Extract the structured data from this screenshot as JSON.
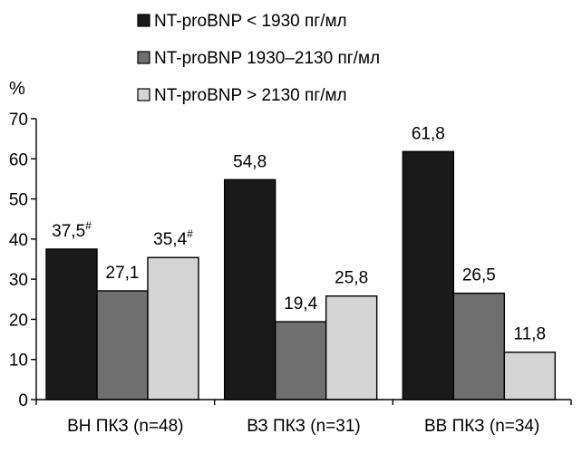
{
  "chart_data": {
    "type": "bar",
    "ylabel": "%",
    "xlabel": "",
    "ylim": [
      0,
      70
    ],
    "yticks": [
      0,
      10,
      20,
      30,
      40,
      50,
      60,
      70
    ],
    "grid": false,
    "legend_position": "top",
    "categories": [
      "ВН ПКЗ (n=48)",
      "ВЗ ПКЗ (n=31)",
      "ВВ ПКЗ (n=34)"
    ],
    "series": [
      {
        "name": "NT-proBNP < 1930 пг/мл",
        "color": "#1a1a1a",
        "values": [
          37.5,
          54.8,
          61.8
        ],
        "labels": [
          "37,5",
          "54,8",
          "61,8"
        ],
        "marks": [
          "#",
          "",
          ""
        ]
      },
      {
        "name": "NT-proBNP 1930–2130 пг/мл",
        "color": "#6f6f6f",
        "values": [
          27.1,
          19.4,
          26.5
        ],
        "labels": [
          "27,1",
          "19,4",
          "26,5"
        ],
        "marks": [
          "",
          "",
          ""
        ]
      },
      {
        "name": "NT-proBNP > 2130 пг/мл",
        "color": "#d4d4d4",
        "values": [
          35.4,
          25.8,
          11.8
        ],
        "labels": [
          "35,4",
          "25,8",
          "11,8"
        ],
        "marks": [
          "#",
          "",
          ""
        ]
      }
    ]
  }
}
